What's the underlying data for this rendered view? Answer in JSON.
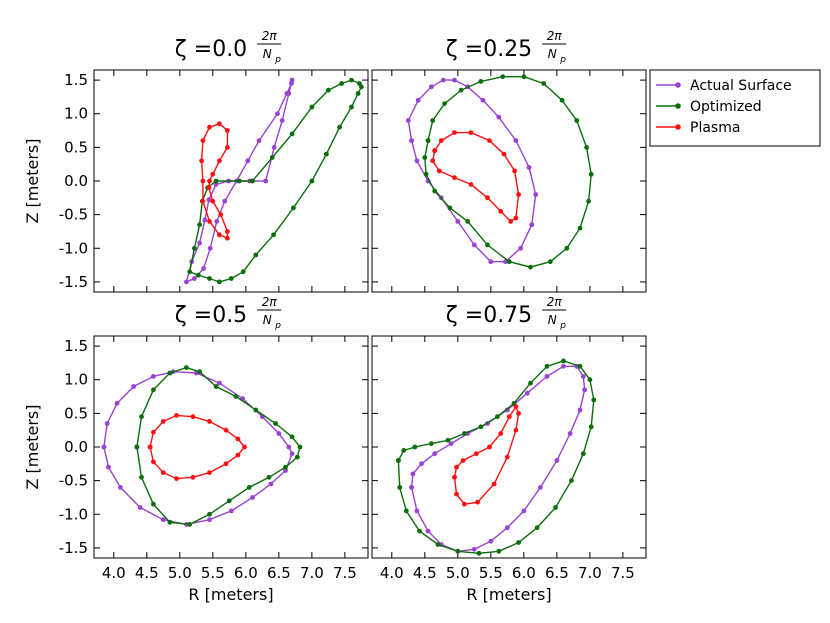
{
  "figure": {
    "legend_placement": "outside-top-right"
  },
  "chart_data": [
    {
      "type": "line",
      "title": "ζ =0.0",
      "title_frac": {
        "numerator": "2π",
        "denominator": "N",
        "subscript": "p"
      },
      "xlabel": "",
      "ylabel": "Z [meters]",
      "xlim": [
        3.7,
        7.85
      ],
      "ylim": [
        -1.65,
        1.65
      ],
      "xticks": [],
      "yticks": [
        "1.5",
        "1.0",
        "0.5",
        "0.0",
        "-0.5",
        "-1.0",
        "-1.5"
      ],
      "series": [
        {
          "name": "Actual Surface",
          "color": "#9a42d4",
          "x": [
            6.3,
            6.06,
            5.74,
            5.55,
            5.44,
            5.38,
            5.3,
            5.18,
            5.1,
            5.22,
            5.36,
            5.46,
            5.56,
            5.68,
            5.86,
            6.03,
            6.2,
            6.48,
            6.62,
            6.69,
            6.7,
            6.65,
            6.55,
            6.43
          ],
          "y": [
            0.0,
            0.0,
            0.0,
            -0.05,
            -0.28,
            -0.58,
            -0.92,
            -1.2,
            -1.5,
            -1.45,
            -1.3,
            -1.0,
            -0.6,
            -0.3,
            0.0,
            0.3,
            0.6,
            1.0,
            1.3,
            1.45,
            1.5,
            1.3,
            0.9,
            0.5
          ]
        },
        {
          "name": "Optimized",
          "color": "#0b6e0b",
          "x": [
            6.1,
            5.9,
            5.55,
            5.42,
            5.34,
            5.3,
            5.22,
            5.15,
            5.28,
            5.45,
            5.6,
            5.78,
            5.96,
            6.15,
            6.42,
            6.72,
            7.0,
            7.22,
            7.42,
            7.6,
            7.7,
            7.75,
            7.72,
            7.6,
            7.45,
            7.25,
            7.0,
            6.7,
            6.4,
            6.1
          ],
          "y": [
            0.0,
            0.0,
            0.0,
            -0.1,
            -0.3,
            -0.65,
            -1.0,
            -1.35,
            -1.4,
            -1.45,
            -1.5,
            -1.45,
            -1.35,
            -1.1,
            -0.8,
            -0.4,
            0.0,
            0.4,
            0.8,
            1.1,
            1.3,
            1.4,
            1.45,
            1.5,
            1.45,
            1.35,
            1.1,
            0.7,
            0.35,
            0.0
          ]
        },
        {
          "name": "Plasma",
          "color": "#ff1010",
          "x": [
            5.35,
            5.33,
            5.35,
            5.45,
            5.6,
            5.72,
            5.72,
            5.6,
            5.5,
            5.45,
            5.44,
            5.5,
            5.62,
            5.72,
            5.72,
            5.6,
            5.45,
            5.35
          ],
          "y": [
            0.0,
            0.3,
            0.6,
            0.8,
            0.85,
            0.75,
            0.5,
            0.3,
            0.1,
            0.0,
            -0.1,
            -0.3,
            -0.5,
            -0.75,
            -0.85,
            -0.8,
            -0.6,
            -0.3
          ]
        }
      ]
    },
    {
      "type": "line",
      "title": "ζ =0.25",
      "title_frac": {
        "numerator": "2π",
        "denominator": "N",
        "subscript": "p"
      },
      "xlabel": "",
      "ylabel": "",
      "xlim": [
        3.7,
        7.85
      ],
      "ylim": [
        -1.65,
        1.65
      ],
      "xticks": [],
      "yticks": [],
      "series": [
        {
          "name": "Actual Surface",
          "color": "#9a42d4",
          "x": [
            4.3,
            4.25,
            4.4,
            4.6,
            4.78,
            4.95,
            5.15,
            5.38,
            5.62,
            5.88,
            6.08,
            6.18,
            6.12,
            5.95,
            5.72,
            5.5,
            5.25,
            5.0,
            4.75,
            4.55,
            4.38,
            4.3
          ],
          "y": [
            0.6,
            0.9,
            1.2,
            1.4,
            1.5,
            1.5,
            1.4,
            1.2,
            0.95,
            0.6,
            0.2,
            -0.2,
            -0.65,
            -1.0,
            -1.2,
            -1.2,
            -0.95,
            -0.6,
            -0.25,
            0.0,
            0.3,
            0.6
          ]
        },
        {
          "name": "Optimized",
          "color": "#0b6e0b",
          "x": [
            4.55,
            4.62,
            4.8,
            5.05,
            5.35,
            5.68,
            6.0,
            6.3,
            6.58,
            6.8,
            6.95,
            7.02,
            6.98,
            6.85,
            6.65,
            6.4,
            6.1,
            5.78,
            5.45,
            5.15,
            4.88,
            4.65,
            4.52,
            4.5,
            4.55
          ],
          "y": [
            0.6,
            0.9,
            1.15,
            1.35,
            1.48,
            1.55,
            1.55,
            1.45,
            1.2,
            0.9,
            0.5,
            0.1,
            -0.3,
            -0.7,
            -1.0,
            -1.2,
            -1.28,
            -1.2,
            -0.95,
            -0.6,
            -0.4,
            -0.15,
            0.1,
            0.35,
            0.6
          ]
        },
        {
          "name": "Plasma",
          "color": "#ff1010",
          "x": [
            4.65,
            4.75,
            4.95,
            5.2,
            5.48,
            5.7,
            5.86,
            5.92,
            5.88,
            5.8,
            5.65,
            5.45,
            5.2,
            4.95,
            4.72,
            4.62,
            4.65
          ],
          "y": [
            0.45,
            0.6,
            0.72,
            0.72,
            0.6,
            0.4,
            0.15,
            -0.2,
            -0.55,
            -0.6,
            -0.45,
            -0.25,
            -0.05,
            0.05,
            0.15,
            0.3,
            0.45
          ]
        }
      ]
    },
    {
      "type": "line",
      "title": "ζ =0.5",
      "title_frac": {
        "numerator": "2π",
        "denominator": "N",
        "subscript": "p"
      },
      "xlabel": "R [meters]",
      "ylabel": "Z [meters]",
      "xlim": [
        3.7,
        7.85
      ],
      "ylim": [
        -1.65,
        1.65
      ],
      "xticks": [
        "4.0",
        "4.5",
        "5.0",
        "5.5",
        "6.0",
        "6.5",
        "7.0",
        "7.5"
      ],
      "yticks": [
        "1.5",
        "1.0",
        "0.5",
        "0.0",
        "-0.5",
        "-1.0",
        "-1.5"
      ],
      "series": [
        {
          "name": "Actual Surface",
          "color": "#9a42d4",
          "x": [
            3.85,
            3.9,
            4.05,
            4.3,
            4.6,
            4.9,
            5.25,
            5.6,
            5.95,
            6.25,
            6.5,
            6.65,
            6.7,
            6.6,
            6.38,
            6.1,
            5.78,
            5.45,
            5.1,
            4.75,
            4.4,
            4.1,
            3.92,
            3.85
          ],
          "y": [
            0.0,
            0.35,
            0.65,
            0.9,
            1.05,
            1.12,
            1.1,
            0.95,
            0.72,
            0.45,
            0.2,
            0.0,
            -0.1,
            -0.35,
            -0.55,
            -0.75,
            -0.95,
            -1.08,
            -1.15,
            -1.08,
            -0.9,
            -0.6,
            -0.3,
            0.0
          ]
        },
        {
          "name": "Optimized",
          "color": "#0b6e0b",
          "x": [
            4.35,
            4.42,
            4.6,
            4.85,
            5.1,
            5.3,
            5.55,
            5.85,
            6.15,
            6.45,
            6.7,
            6.82,
            6.78,
            6.6,
            6.35,
            6.05,
            5.75,
            5.45,
            5.15,
            4.85,
            4.6,
            4.42,
            4.35
          ],
          "y": [
            0.0,
            0.45,
            0.85,
            1.1,
            1.18,
            1.12,
            0.9,
            0.75,
            0.55,
            0.35,
            0.15,
            0.0,
            -0.15,
            -0.3,
            -0.45,
            -0.6,
            -0.8,
            -1.0,
            -1.15,
            -1.12,
            -0.85,
            -0.45,
            0.0
          ]
        },
        {
          "name": "Plasma",
          "color": "#ff1010",
          "x": [
            4.55,
            4.6,
            4.75,
            4.95,
            5.2,
            5.45,
            5.7,
            5.88,
            5.98,
            5.88,
            5.7,
            5.45,
            5.2,
            4.95,
            4.75,
            4.6,
            4.55
          ],
          "y": [
            0.0,
            0.22,
            0.38,
            0.47,
            0.45,
            0.38,
            0.25,
            0.12,
            0.0,
            -0.12,
            -0.25,
            -0.38,
            -0.45,
            -0.47,
            -0.38,
            -0.22,
            0.0
          ]
        }
      ]
    },
    {
      "type": "line",
      "title": "ζ =0.75",
      "title_frac": {
        "numerator": "2π",
        "denominator": "N",
        "subscript": "p"
      },
      "xlabel": "R [meters]",
      "ylabel": "",
      "xlim": [
        3.7,
        7.85
      ],
      "ylim": [
        -1.65,
        1.65
      ],
      "xticks": [
        "4.0",
        "4.5",
        "5.0",
        "5.5",
        "6.0",
        "6.5",
        "7.0",
        "7.5"
      ],
      "yticks": [],
      "series": [
        {
          "name": "Actual Surface",
          "color": "#9a42d4",
          "x": [
            4.3,
            4.38,
            4.55,
            4.75,
            5.0,
            5.25,
            5.5,
            5.75,
            6.0,
            6.25,
            6.5,
            6.7,
            6.85,
            6.92,
            6.9,
            6.8,
            6.6,
            6.35,
            6.05,
            5.75,
            5.45,
            5.15,
            4.9,
            4.65,
            4.45,
            4.32,
            4.3
          ],
          "y": [
            -0.6,
            -0.95,
            -1.25,
            -1.45,
            -1.55,
            -1.52,
            -1.4,
            -1.2,
            -0.95,
            -0.6,
            -0.2,
            0.2,
            0.55,
            0.85,
            1.05,
            1.2,
            1.2,
            1.05,
            0.8,
            0.55,
            0.35,
            0.2,
            0.05,
            -0.1,
            -0.25,
            -0.4,
            -0.6
          ]
        },
        {
          "name": "Optimized",
          "color": "#0b6e0b",
          "x": [
            4.1,
            4.12,
            4.22,
            4.42,
            4.7,
            5.0,
            5.32,
            5.62,
            5.92,
            6.2,
            6.48,
            6.72,
            6.9,
            7.02,
            7.06,
            7.0,
            6.85,
            6.6,
            6.35,
            6.1,
            5.85,
            5.6,
            5.35,
            5.1,
            4.85,
            4.6,
            4.35,
            4.18,
            4.1
          ],
          "y": [
            -0.2,
            -0.6,
            -0.95,
            -1.25,
            -1.45,
            -1.55,
            -1.58,
            -1.55,
            -1.42,
            -1.2,
            -0.9,
            -0.5,
            -0.1,
            0.3,
            0.7,
            1.0,
            1.2,
            1.28,
            1.2,
            0.95,
            0.65,
            0.45,
            0.3,
            0.2,
            0.1,
            0.05,
            0.0,
            -0.05,
            -0.2
          ]
        },
        {
          "name": "Plasma",
          "color": "#ff1010",
          "x": [
            4.95,
            4.98,
            5.1,
            5.3,
            5.55,
            5.75,
            5.88,
            5.92,
            5.88,
            5.78,
            5.65,
            5.48,
            5.28,
            5.08,
            4.98,
            4.95
          ],
          "y": [
            -0.45,
            -0.7,
            -0.85,
            -0.82,
            -0.55,
            -0.15,
            0.25,
            0.5,
            0.6,
            0.45,
            0.2,
            0.0,
            -0.1,
            -0.2,
            -0.3,
            -0.45
          ]
        }
      ]
    }
  ],
  "legend": {
    "entries": [
      {
        "label": "Actual Surface",
        "color": "#9a42d4"
      },
      {
        "label": "Optimized",
        "color": "#0b6e0b"
      },
      {
        "label": "Plasma",
        "color": "#ff1010"
      }
    ]
  }
}
